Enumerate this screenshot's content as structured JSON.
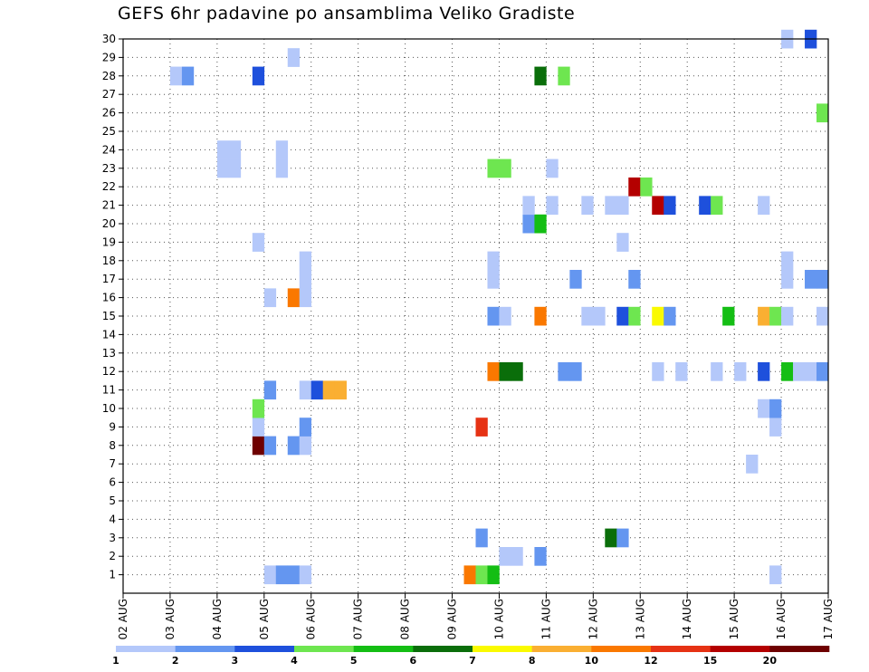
{
  "chart_data": {
    "type": "heatmap",
    "title": "GEFS 6hr padavine po ansamblima Veliko Gradiste",
    "x_tick_labels": [
      "02 AUG",
      "03 AUG",
      "04 AUG",
      "05 AUG",
      "06 AUG",
      "07 AUG",
      "08 AUG",
      "09 AUG",
      "10 AUG",
      "11 AUG",
      "12 AUG",
      "13 AUG",
      "14 AUG",
      "15 AUG",
      "16 AUG",
      "17 AUG"
    ],
    "y_tick_labels": [
      "1",
      "2",
      "3",
      "4",
      "5",
      "6",
      "7",
      "8",
      "9",
      "10",
      "11",
      "12",
      "13",
      "14",
      "15",
      "16",
      "17",
      "18",
      "19",
      "20",
      "21",
      "22",
      "23",
      "24",
      "25",
      "26",
      "27",
      "28",
      "29",
      "30"
    ],
    "x_range_days": [
      0,
      15
    ],
    "step_hours": 6,
    "members": 30,
    "grid": "dotted",
    "colorbar": {
      "placement": "bottom",
      "colors": [
        "#b4c8fa",
        "#6496f0",
        "#1e50dc",
        "#6ee650",
        "#14be14",
        "#0a6e0a",
        "#fafa00",
        "#faaf32",
        "#fa7800",
        "#e63214",
        "#b40000",
        "#6e0000"
      ],
      "labels": [
        "1",
        "2",
        "3",
        "4",
        "5",
        "6",
        "7",
        "8",
        "10",
        "12",
        "15",
        "20"
      ]
    },
    "cells": [
      {
        "m": 1,
        "t": 12,
        "v": 1
      },
      {
        "m": 1,
        "t": 13,
        "v": 2
      },
      {
        "m": 1,
        "t": 14,
        "v": 2
      },
      {
        "m": 1,
        "t": 15,
        "v": 1
      },
      {
        "m": 1,
        "t": 29,
        "v": 10
      },
      {
        "m": 1,
        "t": 30,
        "v": 4
      },
      {
        "m": 1,
        "t": 31,
        "v": 5
      },
      {
        "m": 1,
        "t": 55,
        "v": 1
      },
      {
        "m": 2,
        "t": 32,
        "v": 1
      },
      {
        "m": 2,
        "t": 33,
        "v": 1
      },
      {
        "m": 2,
        "t": 35,
        "v": 2
      },
      {
        "m": 3,
        "t": 30,
        "v": 2
      },
      {
        "m": 3,
        "t": 41,
        "v": 6
      },
      {
        "m": 3,
        "t": 42,
        "v": 2
      },
      {
        "m": 7,
        "t": 53,
        "v": 1
      },
      {
        "m": 8,
        "t": 11,
        "v": 20
      },
      {
        "m": 8,
        "t": 12,
        "v": 2
      },
      {
        "m": 8,
        "t": 14,
        "v": 2
      },
      {
        "m": 8,
        "t": 15,
        "v": 1
      },
      {
        "m": 9,
        "t": 11,
        "v": 1
      },
      {
        "m": 9,
        "t": 15,
        "v": 2
      },
      {
        "m": 9,
        "t": 30,
        "v": 12
      },
      {
        "m": 9,
        "t": 55,
        "v": 1
      },
      {
        "m": 10,
        "t": 11,
        "v": 4
      },
      {
        "m": 10,
        "t": 54,
        "v": 1
      },
      {
        "m": 10,
        "t": 55,
        "v": 2
      },
      {
        "m": 11,
        "t": 12,
        "v": 2
      },
      {
        "m": 11,
        "t": 15,
        "v": 1
      },
      {
        "m": 11,
        "t": 16,
        "v": 3
      },
      {
        "m": 11,
        "t": 17,
        "v": 8
      },
      {
        "m": 11,
        "t": 18,
        "v": 8
      },
      {
        "m": 12,
        "t": 31,
        "v": 10
      },
      {
        "m": 12,
        "t": 32,
        "v": 6
      },
      {
        "m": 12,
        "t": 33,
        "v": 6
      },
      {
        "m": 12,
        "t": 37,
        "v": 2
      },
      {
        "m": 12,
        "t": 38,
        "v": 2
      },
      {
        "m": 12,
        "t": 45,
        "v": 1
      },
      {
        "m": 12,
        "t": 47,
        "v": 1
      },
      {
        "m": 12,
        "t": 50,
        "v": 1
      },
      {
        "m": 12,
        "t": 52,
        "v": 1
      },
      {
        "m": 12,
        "t": 54,
        "v": 3
      },
      {
        "m": 12,
        "t": 56,
        "v": 5
      },
      {
        "m": 12,
        "t": 57,
        "v": 1
      },
      {
        "m": 12,
        "t": 58,
        "v": 1
      },
      {
        "m": 12,
        "t": 59,
        "v": 2
      },
      {
        "m": 15,
        "t": 31,
        "v": 2
      },
      {
        "m": 15,
        "t": 32,
        "v": 1
      },
      {
        "m": 15,
        "t": 35,
        "v": 10
      },
      {
        "m": 15,
        "t": 39,
        "v": 1
      },
      {
        "m": 15,
        "t": 40,
        "v": 1
      },
      {
        "m": 15,
        "t": 42,
        "v": 3
      },
      {
        "m": 15,
        "t": 43,
        "v": 4
      },
      {
        "m": 15,
        "t": 45,
        "v": 7
      },
      {
        "m": 15,
        "t": 46,
        "v": 2
      },
      {
        "m": 15,
        "t": 51,
        "v": 5
      },
      {
        "m": 15,
        "t": 54,
        "v": 8
      },
      {
        "m": 15,
        "t": 55,
        "v": 4
      },
      {
        "m": 15,
        "t": 56,
        "v": 1
      },
      {
        "m": 15,
        "t": 59,
        "v": 1
      },
      {
        "m": 16,
        "t": 12,
        "v": 1
      },
      {
        "m": 16,
        "t": 14,
        "v": 10
      },
      {
        "m": 16,
        "t": 15,
        "v": 1
      },
      {
        "m": 17,
        "t": 15,
        "v": 1
      },
      {
        "m": 17,
        "t": 31,
        "v": 1
      },
      {
        "m": 17,
        "t": 38,
        "v": 2
      },
      {
        "m": 17,
        "t": 43,
        "v": 2
      },
      {
        "m": 17,
        "t": 56,
        "v": 1
      },
      {
        "m": 17,
        "t": 58,
        "v": 2
      },
      {
        "m": 17,
        "t": 59,
        "v": 2
      },
      {
        "m": 18,
        "t": 15,
        "v": 1
      },
      {
        "m": 18,
        "t": 31,
        "v": 1
      },
      {
        "m": 18,
        "t": 56,
        "v": 1
      },
      {
        "m": 19,
        "t": 11,
        "v": 1
      },
      {
        "m": 19,
        "t": 42,
        "v": 1
      },
      {
        "m": 20,
        "t": 34,
        "v": 2
      },
      {
        "m": 20,
        "t": 35,
        "v": 5
      },
      {
        "m": 21,
        "t": 34,
        "v": 1
      },
      {
        "m": 21,
        "t": 36,
        "v": 1
      },
      {
        "m": 21,
        "t": 39,
        "v": 1
      },
      {
        "m": 21,
        "t": 41,
        "v": 1
      },
      {
        "m": 21,
        "t": 42,
        "v": 1
      },
      {
        "m": 21,
        "t": 45,
        "v": 15
      },
      {
        "m": 21,
        "t": 46,
        "v": 3
      },
      {
        "m": 21,
        "t": 49,
        "v": 3
      },
      {
        "m": 21,
        "t": 50,
        "v": 4
      },
      {
        "m": 21,
        "t": 54,
        "v": 1
      },
      {
        "m": 22,
        "t": 43,
        "v": 15
      },
      {
        "m": 22,
        "t": 44,
        "v": 4
      },
      {
        "m": 23,
        "t": 8,
        "v": 1
      },
      {
        "m": 23,
        "t": 9,
        "v": 1
      },
      {
        "m": 23,
        "t": 13,
        "v": 1
      },
      {
        "m": 23,
        "t": 31,
        "v": 4
      },
      {
        "m": 23,
        "t": 32,
        "v": 4
      },
      {
        "m": 23,
        "t": 36,
        "v": 1
      },
      {
        "m": 24,
        "t": 8,
        "v": 1
      },
      {
        "m": 24,
        "t": 9,
        "v": 1
      },
      {
        "m": 24,
        "t": 13,
        "v": 1
      },
      {
        "m": 26,
        "t": 59,
        "v": 4
      },
      {
        "m": 28,
        "t": 4,
        "v": 1
      },
      {
        "m": 28,
        "t": 5,
        "v": 2
      },
      {
        "m": 28,
        "t": 11,
        "v": 3
      },
      {
        "m": 28,
        "t": 35,
        "v": 6
      },
      {
        "m": 28,
        "t": 37,
        "v": 4
      },
      {
        "m": 29,
        "t": 14,
        "v": 1
      },
      {
        "m": 30,
        "t": 56,
        "v": 1
      },
      {
        "m": 30,
        "t": 58,
        "v": 3
      }
    ]
  }
}
